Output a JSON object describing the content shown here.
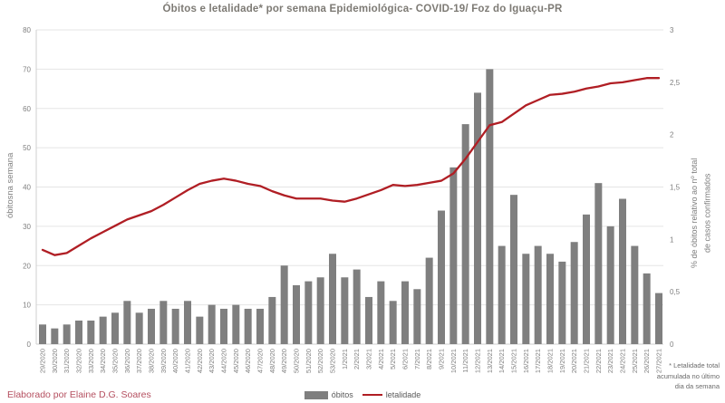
{
  "title": "Óbitos e letalidade*  por semana Epidemiológica- COVID-19/ Foz do Iguaçu-PR",
  "credit": "Elaborado por Elaine D.G. Soares",
  "footnote": "* Letalidade total\nacumulada no último\ndia da semana",
  "legend": {
    "bars_label": "óbitos",
    "line_label": "letalidade"
  },
  "colors": {
    "bar": "#7f7f7f",
    "line": "#b01e24",
    "grid": "#e5e5e5",
    "axis": "#cfcfcf",
    "tick_text": "#7f7f7f",
    "credit_text": "#b55060"
  },
  "chart_data": {
    "type": "bar",
    "subtype": "combo bar+line, dual axis",
    "categories": [
      "29/2020",
      "30/2020",
      "31/2020",
      "32/2020",
      "33/2020",
      "34/2020",
      "35/2020",
      "36/2020",
      "37/2020",
      "38/2020",
      "39/2020",
      "40/2020",
      "41/2020",
      "42/2020",
      "43/2020",
      "44/2020",
      "45/2020",
      "46/2020",
      "47/2020",
      "48/2020",
      "49/2020",
      "50/2020",
      "51/2020",
      "52/2020",
      "53/2020",
      "1/2021",
      "2/2021",
      "3/2021",
      "4/2021",
      "5/2021",
      "6/2021",
      "7/2021",
      "8/2021",
      "9/2021",
      "10/2021",
      "11/2021",
      "12/2021",
      "13/2021",
      "14/2021",
      "15/2021",
      "16/2021",
      "17/2021",
      "18/2021",
      "19/2021",
      "20/2021",
      "21/2021",
      "22/2021",
      "23/2021",
      "24/2021",
      "25/2021",
      "26/2021",
      "27/2021"
    ],
    "series": [
      {
        "name": "óbitos",
        "type": "bar",
        "axis": "left",
        "values": [
          5,
          4,
          5,
          6,
          6,
          7,
          8,
          11,
          8,
          9,
          11,
          9,
          11,
          7,
          10,
          9,
          10,
          9,
          9,
          12,
          20,
          15,
          16,
          17,
          23,
          17,
          19,
          12,
          16,
          11,
          16,
          14,
          22,
          34,
          45,
          56,
          64,
          70,
          25,
          38,
          23,
          25,
          23,
          21,
          26,
          33,
          41,
          30,
          37,
          25,
          18,
          13
        ]
      },
      {
        "name": "letalidade",
        "type": "line",
        "axis": "right",
        "values": [
          0.9,
          0.85,
          0.87,
          0.94,
          1.01,
          1.07,
          1.13,
          1.19,
          1.23,
          1.27,
          1.33,
          1.4,
          1.47,
          1.53,
          1.56,
          1.58,
          1.56,
          1.53,
          1.51,
          1.46,
          1.42,
          1.39,
          1.39,
          1.39,
          1.37,
          1.36,
          1.39,
          1.43,
          1.47,
          1.52,
          1.51,
          1.52,
          1.54,
          1.56,
          1.63,
          1.77,
          1.93,
          2.09,
          2.12,
          2.2,
          2.28,
          2.33,
          2.38,
          2.39,
          2.41,
          2.44,
          2.46,
          2.49,
          2.5,
          2.52,
          2.54,
          2.54
        ]
      }
    ],
    "left_axis": {
      "label": "óbitosna semana",
      "ticks": [
        0,
        10,
        20,
        30,
        40,
        50,
        60,
        70,
        80
      ],
      "range": [
        0,
        80
      ]
    },
    "right_axis": {
      "label": "% de óbitos relativo ao nº total\nde casos confirmados",
      "ticks": [
        "0",
        "0,5",
        "1",
        "1,5",
        "2",
        "2,5",
        "3"
      ],
      "range": [
        0,
        3
      ]
    },
    "grid": true,
    "legend_position": "bottom"
  }
}
